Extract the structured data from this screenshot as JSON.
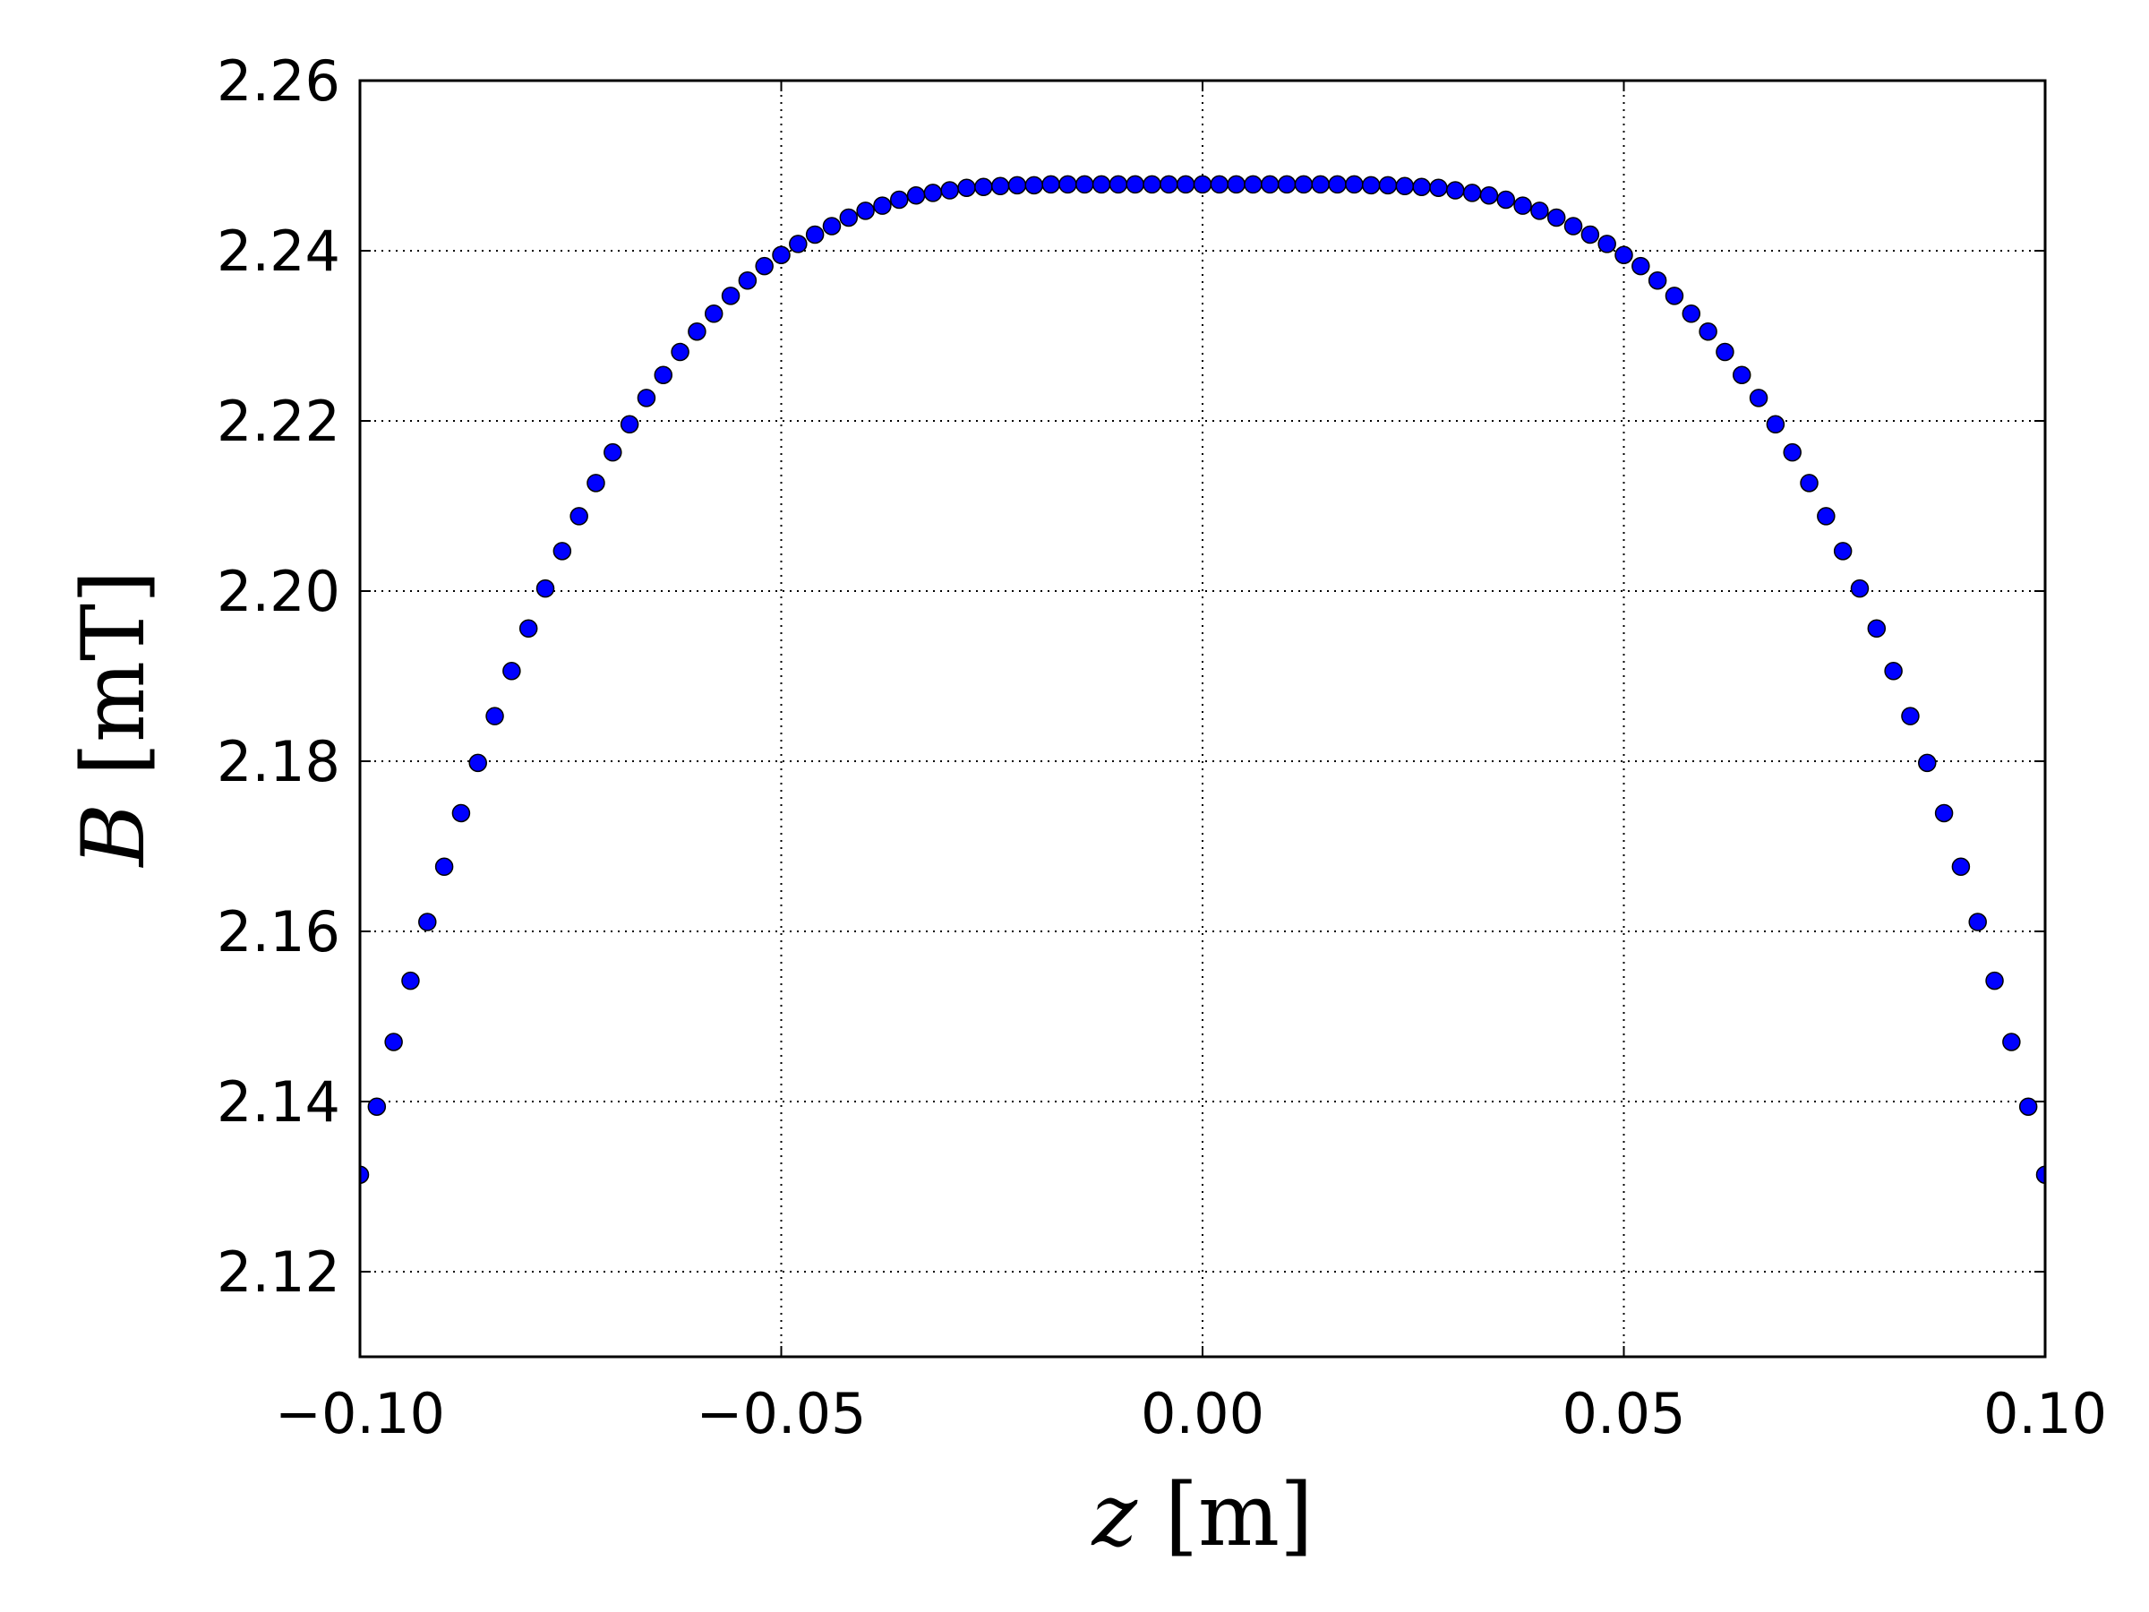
{
  "chart_data": {
    "type": "scatter",
    "x_label": "z [m]",
    "y_label": "B [mT]",
    "color": "#0000ff",
    "grid": true,
    "xlim": [
      -0.1,
      0.1
    ],
    "ylim": [
      2.11,
      2.26
    ],
    "xticks": [
      {
        "value": -0.1,
        "label": "−0.10"
      },
      {
        "value": -0.05,
        "label": "−0.05"
      },
      {
        "value": 0,
        "label": "0.00"
      },
      0.05,
      {
        "value": 0.1,
        "label": "0.10"
      }
    ],
    "yticks": [
      2.12,
      2.14,
      2.16,
      2.18,
      {
        "value": 2.2,
        "label": "2.20"
      },
      2.22,
      2.24,
      2.26
    ],
    "x": [
      -0.1,
      -0.098,
      -0.096,
      -0.094,
      -0.092,
      -0.09,
      -0.088,
      -0.086,
      -0.084,
      -0.082,
      -0.08,
      -0.078,
      -0.076,
      -0.074,
      -0.072,
      -0.07,
      -0.068,
      -0.066,
      -0.064,
      -0.062,
      -0.06,
      -0.058,
      -0.056,
      -0.054,
      -0.052,
      -0.05,
      -0.048,
      -0.046,
      -0.044,
      -0.042,
      -0.04,
      -0.038,
      -0.036,
      -0.034,
      -0.032,
      -0.03,
      -0.028,
      -0.026,
      -0.024,
      -0.022,
      -0.02,
      -0.018,
      -0.016,
      -0.014,
      -0.012,
      -0.01,
      -0.008,
      -0.006,
      -0.004,
      -0.002,
      0,
      0.002,
      0.004,
      0.006,
      0.008,
      0.01,
      0.012,
      0.014,
      0.016,
      0.018,
      0.02,
      0.022,
      0.024,
      0.026,
      0.028,
      0.03,
      0.032,
      0.034,
      0.036,
      0.038,
      0.04,
      0.042,
      0.044,
      0.046,
      0.048,
      0.05,
      0.052,
      0.054,
      0.056,
      0.058,
      0.06,
      0.062,
      0.064,
      0.066,
      0.068,
      0.07,
      0.072,
      0.074,
      0.076,
      0.078,
      0.08,
      0.082,
      0.084,
      0.086,
      0.088,
      0.09,
      0.092,
      0.094,
      0.096,
      0.098,
      0.1
    ],
    "values": [
      2.1314,
      2.1394,
      2.147,
      2.1542,
      2.1611,
      2.1676,
      2.1739,
      2.1798,
      2.1853,
      2.1906,
      2.1956,
      2.2003,
      2.2047,
      2.2088,
      2.2127,
      2.2163,
      2.2196,
      2.2227,
      2.2254,
      2.2281,
      2.2305,
      2.2326,
      2.2347,
      2.2365,
      2.2382,
      2.2395,
      2.2408,
      2.2419,
      2.2429,
      2.2439,
      2.2447,
      2.2453,
      2.246,
      2.2465,
      2.2468,
      2.2471,
      2.2474,
      2.2475,
      2.2476,
      2.2477,
      2.2477,
      2.2478,
      2.2478,
      2.2478,
      2.2478,
      2.2478,
      2.2478,
      2.2478,
      2.2478,
      2.2478,
      2.2478,
      2.2478,
      2.2478,
      2.2478,
      2.2478,
      2.2478,
      2.2478,
      2.2478,
      2.2478,
      2.2478,
      2.2477,
      2.2477,
      2.2476,
      2.2475,
      2.2474,
      2.2471,
      2.2468,
      2.2465,
      2.246,
      2.2453,
      2.2447,
      2.2439,
      2.2429,
      2.2419,
      2.2408,
      2.2395,
      2.2382,
      2.2365,
      2.2347,
      2.2326,
      2.2305,
      2.2281,
      2.2254,
      2.2227,
      2.2196,
      2.2163,
      2.2127,
      2.2088,
      2.2047,
      2.2003,
      2.1956,
      2.1906,
      2.1853,
      2.1798,
      2.1739,
      2.1676,
      2.1611,
      2.1542,
      2.147,
      2.1394,
      2.1314
    ]
  }
}
